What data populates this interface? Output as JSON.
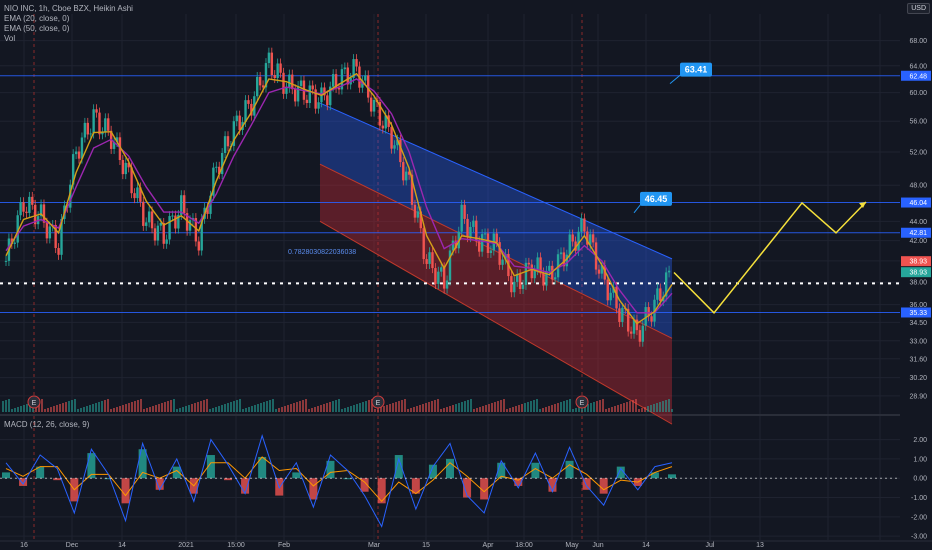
{
  "header": {
    "title": "NIO INC, 1h, Cboe BZX, Heikin Ashi",
    "indicators": [
      "EMA (20, close, 0)",
      "EMA (50, close, 0)",
      "Vol"
    ],
    "currency": "USD"
  },
  "macd_pane": {
    "label": "MACD (12, 26, close, 9)"
  },
  "colors": {
    "background": "#131722",
    "grid": "#1f2330",
    "up": "#26a69a",
    "down": "#ef5350",
    "ema20": "#d4a017",
    "ema50": "#9c27b0",
    "channel_upper": "#2962ff",
    "channel_lower": "#b22833",
    "hline": "#2962ff",
    "projection": "#f5e03b",
    "macd_line": "#2962ff",
    "signal_line": "#ff9800"
  },
  "chart_data": {
    "type": "candlestick",
    "price_axis": {
      "ticks": [
        "68.00",
        "64.00",
        "60.00",
        "56.00",
        "52.00",
        "48.00",
        "44.00",
        "42.00",
        "40.00",
        "38.00",
        "36.00",
        "34.50",
        "33.00",
        "31.60",
        "30.20",
        "28.90"
      ],
      "scale": "log",
      "range": [
        27.8,
        72.5
      ]
    },
    "x_axis_labels": [
      "16",
      "Dec",
      "14",
      "2021",
      "15:00",
      "Feb",
      "Mar",
      "15",
      "Apr",
      "18:00",
      "May",
      "Jun",
      "14",
      "Jul",
      "13"
    ],
    "macd_axis": {
      "ticks": [
        "2.00",
        "1.00",
        "0.00",
        "-1.00",
        "-2.00",
        "-3.00"
      ],
      "range": [
        -3.2,
        2.6
      ]
    },
    "price_series": [
      [
        "16",
        40.0
      ],
      [
        "",
        46.0
      ],
      [
        "",
        44.5
      ],
      [
        "",
        41.5
      ],
      [
        "Dec",
        52.0
      ],
      [
        "",
        56.5
      ],
      [
        "",
        54.0
      ],
      [
        "",
        49.0
      ],
      [
        "14",
        44.0
      ],
      [
        "",
        42.5
      ],
      [
        "",
        45.5
      ],
      [
        "",
        42.0
      ],
      [
        "2021",
        50.0
      ],
      [
        "",
        55.0
      ],
      [
        "",
        58.5
      ],
      [
        "15:00",
        64.5
      ],
      [
        "",
        61.0
      ],
      [
        "",
        60.0
      ],
      [
        "",
        59.0
      ],
      [
        "Feb",
        62.0
      ],
      [
        "",
        63.5
      ],
      [
        "",
        58.0
      ],
      [
        "",
        54.0
      ],
      [
        "Mar",
        48.0
      ],
      [
        "",
        40.0
      ],
      [
        "",
        38.0
      ],
      [
        "15",
        44.5
      ],
      [
        "",
        42.0
      ],
      [
        "",
        41.5
      ],
      [
        "Apr",
        37.5
      ],
      [
        "",
        39.5
      ],
      [
        "18:00",
        38.5
      ],
      [
        "",
        41.0
      ],
      [
        "",
        43.5
      ],
      [
        "",
        38.5
      ],
      [
        "May",
        35.5
      ],
      [
        "",
        33.5
      ],
      [
        "",
        36.0
      ],
      [
        "",
        39.0
      ]
    ],
    "ema20": [
      40.5,
      44.2,
      44.8,
      42.8,
      49.5,
      54.5,
      54.6,
      50.8,
      46.2,
      43.6,
      44.6,
      43.0,
      48.5,
      53.5,
      57.2,
      62.0,
      61.6,
      60.5,
      59.6,
      61.2,
      62.8,
      59.5,
      55.5,
      50.0,
      42.5,
      39.3,
      42.5,
      42.2,
      41.8,
      38.6,
      39.2,
      38.7,
      40.2,
      42.5,
      39.6,
      36.4,
      34.4,
      35.4,
      37.8
    ],
    "ema50": [
      41.0,
      43.5,
      44.2,
      43.3,
      47.8,
      52.5,
      53.6,
      51.5,
      47.8,
      45.0,
      45.0,
      43.8,
      47.0,
      51.5,
      55.5,
      60.0,
      60.8,
      60.3,
      59.8,
      60.8,
      62.0,
      60.2,
      57.0,
      52.0,
      45.5,
      41.2,
      42.2,
      42.0,
      41.7,
      39.5,
      39.3,
      38.9,
      39.8,
      41.5,
      40.0,
      37.3,
      35.3,
      35.3,
      37.0
    ],
    "horizontal_lines": [
      {
        "price": 62.48,
        "label": "62.48"
      },
      {
        "price": 46.04,
        "label": "46.04"
      },
      {
        "price": 42.81,
        "label": "42.81"
      },
      {
        "price": 35.33,
        "label": "35.33"
      }
    ],
    "current_price_tags": [
      {
        "price": 38.93,
        "label": "38.93",
        "kind": "down"
      },
      {
        "price": 38.93,
        "label": "38.93",
        "kind": "up"
      }
    ],
    "dotted_level": {
      "price": 37.9
    },
    "regression_channel": {
      "start_label": "Feb",
      "end_label": "May",
      "upper": [
        58.5,
        40.2
      ],
      "middle": [
        50.5,
        33.2
      ],
      "lower": [
        44.0,
        27.0
      ],
      "deviation_label": "0.7828030822036038"
    },
    "projection_path": [
      38.9,
      35.3,
      46.0,
      42.8,
      46.1
    ],
    "callouts": [
      {
        "text": "63.41",
        "price": 63.41
      },
      {
        "text": "46.45",
        "price": 46.45
      }
    ],
    "earnings_markers": [
      "E",
      "E",
      "E"
    ],
    "macd": {
      "line": [
        0.8,
        -0.3,
        1.2,
        0.5,
        -1.8,
        1.5,
        0.2,
        -2.2,
        1.8,
        -0.6,
        1.0,
        -1.2,
        2.0,
        0.7,
        -0.8,
        2.2,
        -0.5,
        0.8,
        -1.5,
        1.2,
        0.4,
        -0.9,
        -2.5,
        1.0,
        -1.6,
        0.6,
        1.8,
        -0.9,
        -1.8,
        0.9,
        -0.5,
        1.3,
        -0.7,
        1.6,
        -0.4,
        -1.4,
        0.5,
        -0.6,
        0.6,
        0.8
      ],
      "signal": [
        0.5,
        0.1,
        0.6,
        0.6,
        -0.6,
        0.2,
        0.2,
        -0.9,
        0.3,
        0.0,
        0.4,
        -0.4,
        0.8,
        0.8,
        0.0,
        1.1,
        0.4,
        0.5,
        -0.4,
        0.3,
        0.4,
        -0.2,
        -1.2,
        -0.2,
        -0.8,
        -0.1,
        0.8,
        0.1,
        -0.7,
        0.1,
        -0.1,
        0.5,
        0.0,
        0.7,
        0.2,
        -0.6,
        -0.1,
        -0.2,
        0.3,
        0.6
      ]
    }
  }
}
